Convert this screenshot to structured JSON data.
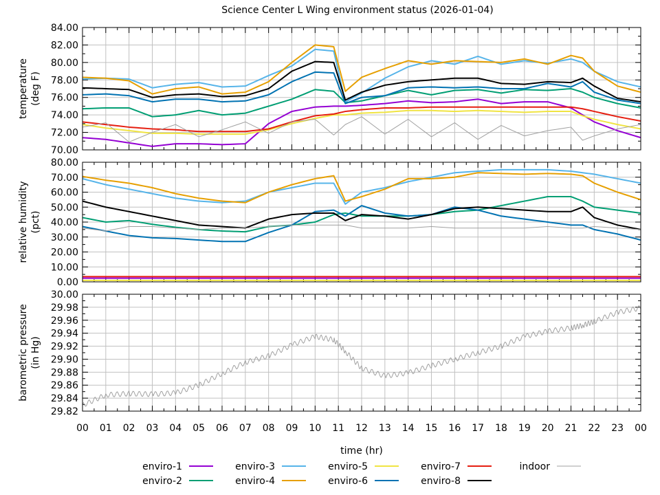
{
  "chart_data": {
    "type": "line",
    "title": "Science Center L Wing environment status (2026-01-04)",
    "xlabel": "time (hr)",
    "x_ticks": [
      "00",
      "01",
      "02",
      "03",
      "04",
      "05",
      "06",
      "07",
      "08",
      "09",
      "10",
      "11",
      "12",
      "13",
      "14",
      "15",
      "16",
      "17",
      "18",
      "19",
      "20",
      "21",
      "22",
      "23",
      "00"
    ],
    "xlim": [
      0,
      24
    ],
    "grid": true,
    "legend_placement": "bottom-center",
    "series_styles": [
      {
        "name": "enviro-1",
        "color": "#9400d3"
      },
      {
        "name": "enviro-2",
        "color": "#009e73"
      },
      {
        "name": "enviro-3",
        "color": "#56b4e9"
      },
      {
        "name": "enviro-4",
        "color": "#e69f00"
      },
      {
        "name": "enviro-5",
        "color": "#f0e442"
      },
      {
        "name": "enviro-6",
        "color": "#0072b2"
      },
      {
        "name": "enviro-7",
        "color": "#e51e10"
      },
      {
        "name": "enviro-8",
        "color": "#000000"
      },
      {
        "name": "indoor",
        "color": "#a0a0a0"
      }
    ],
    "x": [
      0,
      1,
      2,
      3,
      4,
      5,
      6,
      7,
      8,
      9,
      10,
      10.8,
      11.3,
      12,
      13,
      14,
      15,
      16,
      17,
      18,
      19,
      20,
      21,
      21.5,
      22,
      23,
      24
    ],
    "panels": [
      {
        "ylabel": "temperature\n(deg F)",
        "ylim": [
          70,
          84
        ],
        "y_ticks": [
          "84.00",
          "82.00",
          "80.00",
          "78.00",
          "76.00",
          "74.00",
          "72.00",
          "70.00"
        ],
        "series": [
          {
            "name": "enviro-1",
            "values": [
              71.4,
              71.2,
              70.8,
              70.4,
              70.7,
              70.7,
              70.6,
              70.7,
              73.0,
              74.4,
              74.9,
              75.0,
              75.0,
              75.1,
              75.3,
              75.6,
              75.4,
              75.5,
              75.8,
              75.3,
              75.5,
              75.5,
              74.8,
              74.0,
              73.2,
              72.2,
              71.4
            ]
          },
          {
            "name": "enviro-2",
            "values": [
              74.7,
              74.8,
              74.8,
              73.8,
              74.0,
              74.5,
              74.0,
              74.2,
              75.0,
              75.8,
              76.9,
              76.7,
              75.4,
              75.6,
              76.2,
              76.8,
              76.3,
              76.8,
              76.9,
              76.5,
              76.9,
              76.8,
              77.0,
              76.6,
              76.0,
              75.3,
              74.8
            ]
          },
          {
            "name": "enviro-3",
            "values": [
              78.1,
              78.2,
              78.1,
              77.1,
              77.5,
              77.7,
              77.2,
              77.3,
              78.5,
              79.6,
              81.5,
              81.3,
              75.5,
              76.5,
              78.2,
              79.5,
              80.2,
              79.8,
              80.7,
              79.8,
              80.2,
              79.9,
              80.4,
              80.0,
              79.0,
              77.8,
              77.2
            ]
          },
          {
            "name": "enviro-4",
            "values": [
              78.3,
              78.2,
              77.9,
              76.4,
              77.0,
              77.2,
              76.4,
              76.6,
              77.8,
              80.0,
              82.0,
              81.8,
              76.7,
              78.3,
              79.3,
              80.2,
              79.8,
              80.2,
              80.1,
              80.0,
              80.4,
              79.8,
              80.8,
              80.5,
              79.0,
              77.3,
              76.6
            ]
          },
          {
            "name": "enviro-5",
            "values": [
              72.9,
              72.5,
              72.2,
              71.9,
              71.9,
              71.8,
              71.8,
              71.8,
              72.3,
              73.0,
              73.6,
              74.0,
              74.0,
              74.2,
              74.3,
              74.5,
              74.5,
              74.4,
              74.5,
              74.4,
              74.3,
              74.4,
              74.4,
              73.9,
              73.5,
              72.9,
              72.4
            ]
          },
          {
            "name": "enviro-6",
            "values": [
              76.3,
              76.4,
              76.2,
              75.5,
              75.8,
              75.8,
              75.5,
              75.6,
              76.3,
              77.8,
              78.9,
              78.8,
              75.3,
              76.0,
              76.2,
              77.1,
              77.2,
              77.1,
              77.2,
              77.0,
              77.0,
              77.6,
              77.2,
              77.8,
              76.6,
              75.7,
              75.3
            ]
          },
          {
            "name": "enviro-7",
            "values": [
              73.2,
              72.9,
              72.6,
              72.4,
              72.3,
              72.1,
              72.1,
              72.1,
              72.4,
              73.2,
              73.9,
              74.1,
              74.4,
              74.6,
              74.8,
              74.8,
              74.9,
              74.9,
              74.9,
              74.9,
              74.9,
              74.9,
              74.9,
              74.7,
              74.4,
              73.8,
              73.3
            ]
          },
          {
            "name": "enviro-8",
            "values": [
              77.1,
              77.0,
              76.9,
              76.0,
              76.3,
              76.4,
              76.1,
              76.2,
              77.0,
              79.0,
              80.1,
              80.0,
              75.7,
              76.6,
              77.4,
              77.8,
              78.0,
              78.2,
              78.2,
              77.6,
              77.5,
              77.8,
              77.7,
              78.2,
              77.3,
              75.9,
              75.5
            ]
          },
          {
            "name": "indoor",
            "values": [
              72.6,
              73.1,
              70.9,
              72.0,
              72.9,
              71.5,
              72.3,
              73.2,
              71.9,
              73.2,
              73.5,
              71.7,
              72.9,
              73.8,
              71.8,
              73.5,
              71.5,
              73.1,
              71.2,
              72.8,
              71.6,
              72.2,
              72.6,
              71.1,
              71.6,
              72.4,
              72.9
            ]
          }
        ]
      },
      {
        "ylabel": "relative humidity\n(pct)",
        "ylim": [
          0,
          80
        ],
        "y_ticks": [
          "80.00",
          "70.00",
          "60.00",
          "50.00",
          "40.00",
          "30.00",
          "20.00",
          "10.00",
          "0.00"
        ],
        "series": [
          {
            "name": "enviro-1",
            "values": [
              2.5,
              2.5,
              2.5,
              2.5,
              2.5,
              2.5,
              2.5,
              2.5,
              2.5,
              2.5,
              2.5,
              2.5,
              2.5,
              2.5,
              2.5,
              2.5,
              2.5,
              2.5,
              2.5,
              2.5,
              2.5,
              2.5,
              2.5,
              2.5,
              2.5,
              2.5,
              2.5
            ]
          },
          {
            "name": "enviro-2",
            "values": [
              43.0,
              40.0,
              41.0,
              38.5,
              36.5,
              35.0,
              34.0,
              33.5,
              37.0,
              38.0,
              40.0,
              45.0,
              46.0,
              44.0,
              44.0,
              44.0,
              45.0,
              47.0,
              48.0,
              51.0,
              54.0,
              57.0,
              57.0,
              54.0,
              50.0,
              48.0,
              46.0
            ]
          },
          {
            "name": "enviro-3",
            "values": [
              69.0,
              65.0,
              62.0,
              59.0,
              56.0,
              54.0,
              53.0,
              54.0,
              60.0,
              63.0,
              66.0,
              66.0,
              52.0,
              60.0,
              63.0,
              67.0,
              70.0,
              73.0,
              74.0,
              75.0,
              75.0,
              75.0,
              74.0,
              73.0,
              72.0,
              69.0,
              66.0
            ]
          },
          {
            "name": "enviro-4",
            "values": [
              70.5,
              68.0,
              66.0,
              63.0,
              59.0,
              56.0,
              54.0,
              53.0,
              60.0,
              65.0,
              69.0,
              71.0,
              54.0,
              57.0,
              62.0,
              69.0,
              69.0,
              70.0,
              73.0,
              72.5,
              72.0,
              72.5,
              72.0,
              71.0,
              66.0,
              60.0,
              55.0
            ]
          },
          {
            "name": "enviro-5",
            "values": [
              1.0,
              1.0,
              1.0,
              1.0,
              1.0,
              1.0,
              1.0,
              1.0,
              1.0,
              1.0,
              1.0,
              1.0,
              1.0,
              1.0,
              1.0,
              1.0,
              1.0,
              1.0,
              1.0,
              1.0,
              1.0,
              1.0,
              1.0,
              1.0,
              1.0,
              1.0,
              1.0
            ]
          },
          {
            "name": "enviro-6",
            "values": [
              37.0,
              34.0,
              31.0,
              29.5,
              29.0,
              28.0,
              27.0,
              27.0,
              33.0,
              38.0,
              47.0,
              48.0,
              44.0,
              51.0,
              46.0,
              44.0,
              45.0,
              50.0,
              48.0,
              44.0,
              42.0,
              40.0,
              38.0,
              38.0,
              35.0,
              32.0,
              28.0
            ]
          },
          {
            "name": "enviro-7",
            "values": [
              3.5,
              3.5,
              3.5,
              3.5,
              3.5,
              3.5,
              3.5,
              3.5,
              3.5,
              3.5,
              3.5,
              3.5,
              3.5,
              3.5,
              3.5,
              3.5,
              3.5,
              3.5,
              3.5,
              3.5,
              3.5,
              3.5,
              3.5,
              3.5,
              3.5,
              3.5,
              3.5
            ]
          },
          {
            "name": "enviro-8",
            "values": [
              54.0,
              50.0,
              47.0,
              44.0,
              41.0,
              38.0,
              37.0,
              36.0,
              42.0,
              45.0,
              46.0,
              46.0,
              41.0,
              45.0,
              44.0,
              42.0,
              45.0,
              49.0,
              50.0,
              49.0,
              48.0,
              47.0,
              47.0,
              50.0,
              43.0,
              38.0,
              35.0
            ]
          },
          {
            "name": "indoor",
            "values": [
              36.0,
              34.0,
              37.0,
              37.0,
              36.0,
              35.0,
              36.0,
              36.0,
              37.0,
              38.0,
              38.0,
              38.0,
              38.0,
              36.0,
              36.0,
              36.0,
              37.0,
              36.0,
              36.0,
              36.0,
              36.0,
              37.0,
              36.0,
              36.0,
              37.0,
              36.0,
              35.0
            ]
          }
        ]
      },
      {
        "ylabel": "barometric pressure\n(in Hg)",
        "ylim": [
          29.82,
          30.0
        ],
        "y_ticks": [
          "30.00",
          "29.98",
          "29.96",
          "29.94",
          "29.92",
          "29.90",
          "29.88",
          "29.86",
          "29.84",
          "29.82"
        ],
        "series": [
          {
            "name": "indoor",
            "values": [
              29.829,
              29.845,
              29.847,
              29.846,
              29.848,
              29.86,
              29.878,
              29.895,
              29.905,
              29.922,
              29.935,
              29.93,
              29.912,
              29.886,
              29.874,
              29.879,
              29.89,
              29.9,
              29.91,
              29.92,
              29.935,
              29.943,
              29.948,
              29.952,
              29.958,
              29.972,
              29.979
            ]
          }
        ]
      }
    ]
  }
}
